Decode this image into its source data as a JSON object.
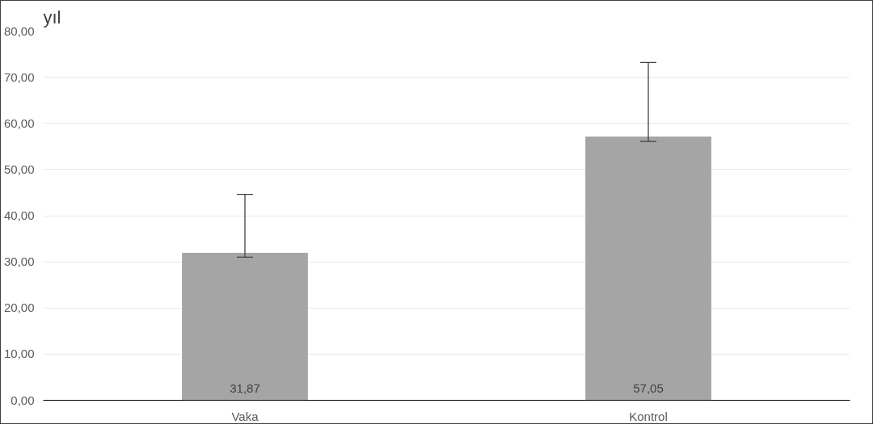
{
  "chart_data": {
    "type": "bar",
    "title": "yıl",
    "categories": [
      "Vaka",
      "Kontrol"
    ],
    "values": [
      31.87,
      57.05
    ],
    "color": "#a5a5a5",
    "errors": [
      [
        31.0,
        44.6
      ],
      [
        56.1,
        73.2
      ]
    ],
    "value_labels": [
      "31,87",
      "57,05"
    ],
    "ylim": [
      0,
      80
    ],
    "yticks": [
      {
        "value": 0,
        "label": "0,00"
      },
      {
        "value": 10,
        "label": "10,00"
      },
      {
        "value": 20,
        "label": "20,00"
      },
      {
        "value": 30,
        "label": "30,00"
      },
      {
        "value": 40,
        "label": "40,00"
      },
      {
        "value": 50,
        "label": "50,00"
      },
      {
        "value": 60,
        "label": "60,00"
      },
      {
        "value": 70,
        "label": "70,00"
      },
      {
        "value": 80,
        "label": "80,00"
      }
    ],
    "grid": "y"
  }
}
